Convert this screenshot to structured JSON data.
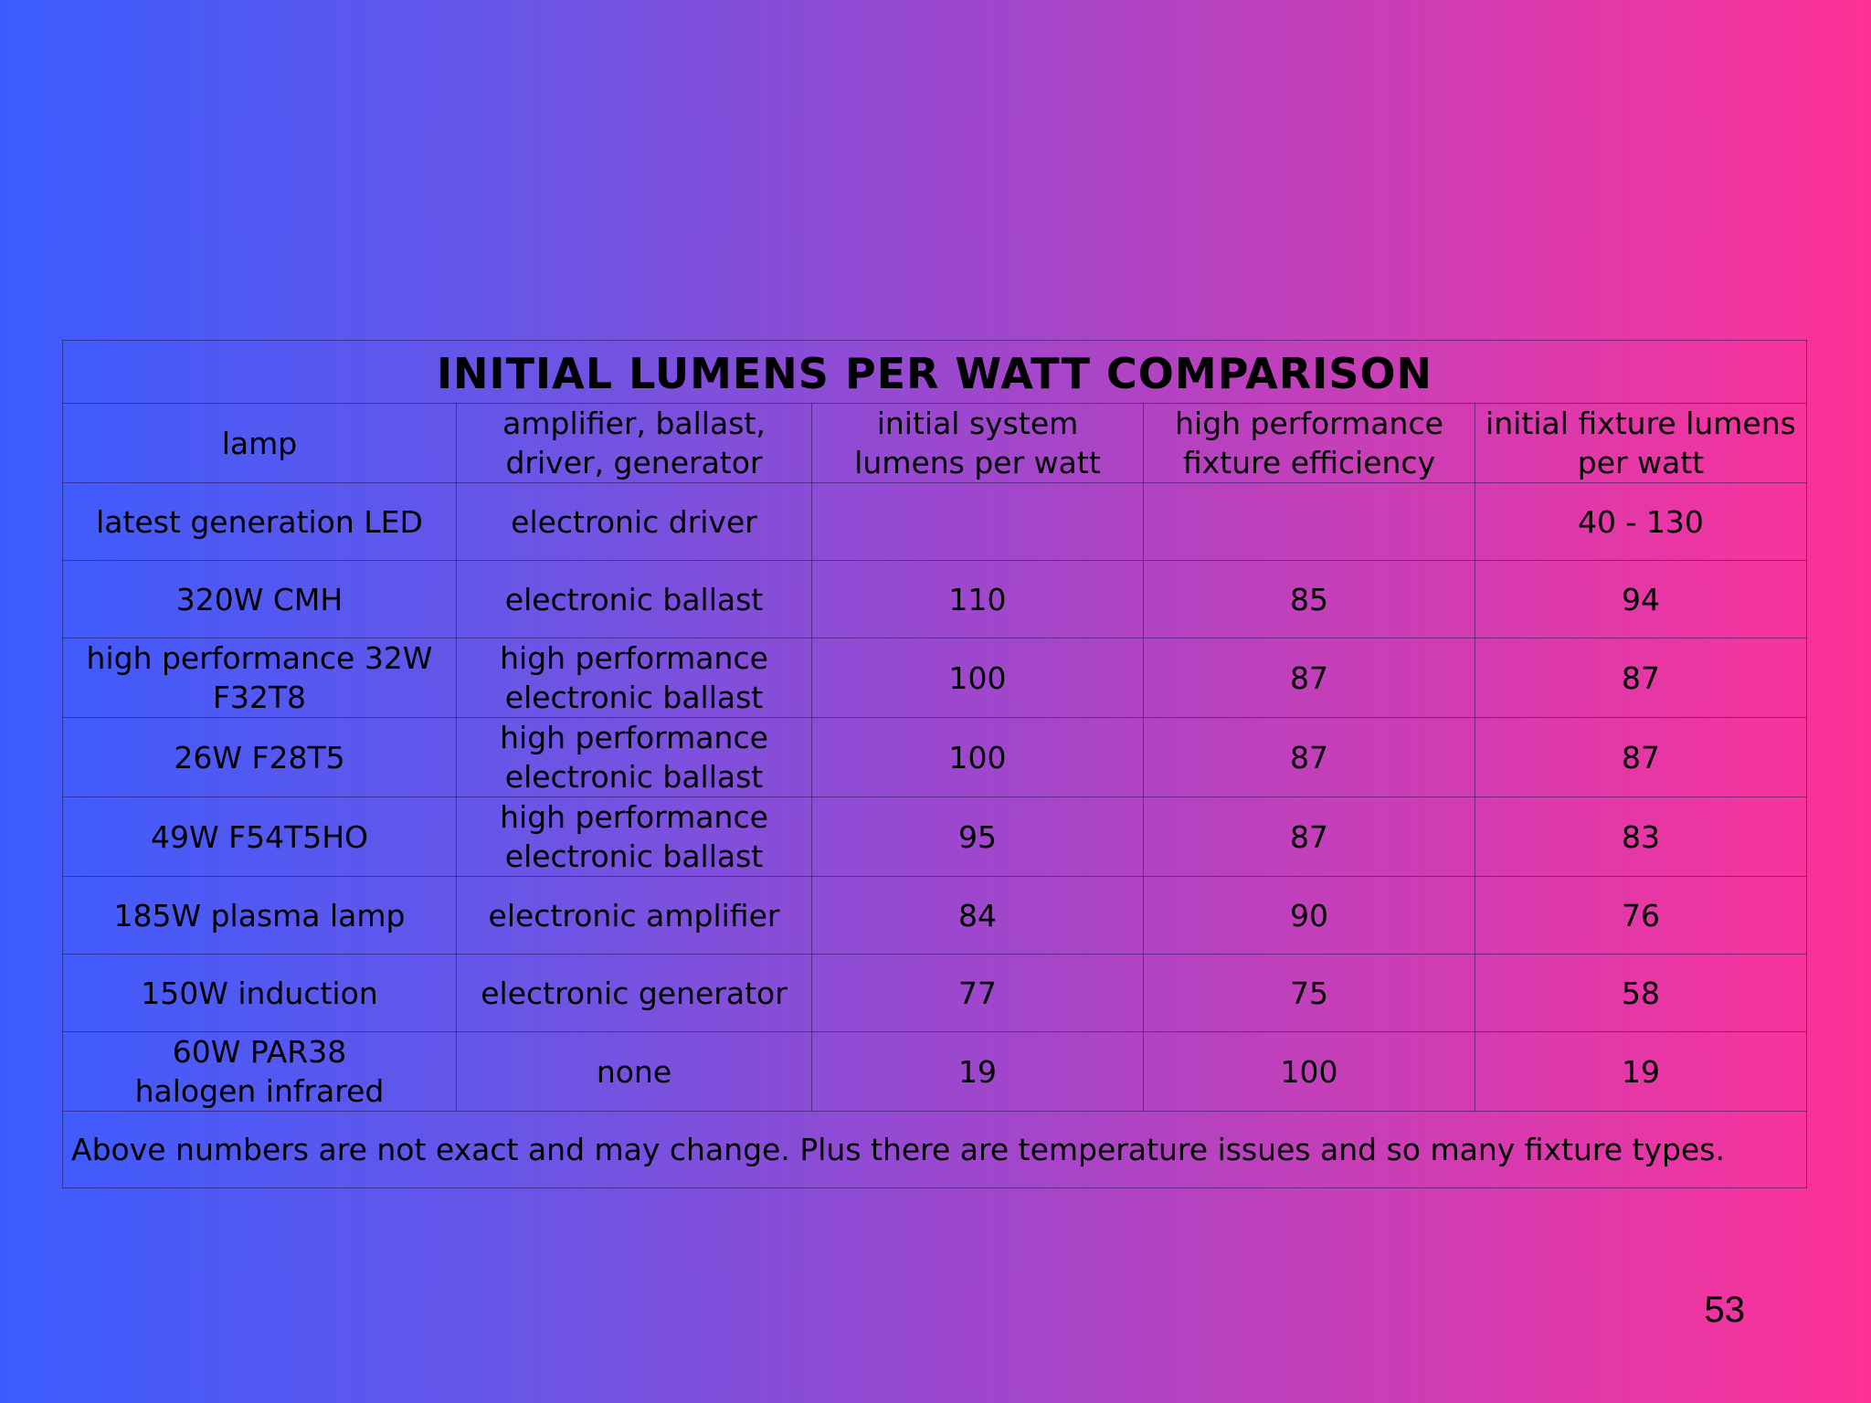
{
  "table": {
    "title": "INITIAL LUMENS PER WATT COMPARISON",
    "headers": [
      "lamp",
      "amplifier, ballast,\ndriver, generator",
      "initial system\nlumens per watt",
      "high performance\nfixture efficiency",
      "initial fixture lumens\nper watt"
    ],
    "rows": [
      [
        "latest generation LED",
        "electronic driver",
        "",
        "",
        "40 - 130"
      ],
      [
        "320W CMH",
        "electronic ballast",
        "110",
        "85",
        "94"
      ],
      [
        "high performance 32W\nF32T8",
        "high performance\nelectronic ballast",
        "100",
        "87",
        "87"
      ],
      [
        "26W F28T5",
        "high performance\nelectronic ballast",
        "100",
        "87",
        "87"
      ],
      [
        "49W F54T5HO",
        "high performance\nelectronic ballast",
        "95",
        "87",
        "83"
      ],
      [
        "185W plasma lamp",
        "electronic amplifier",
        "84",
        "90",
        "76"
      ],
      [
        "150W induction",
        "electronic generator",
        "77",
        "75",
        "58"
      ],
      [
        "60W PAR38\nhalogen infrared",
        "none",
        "19",
        "100",
        "19"
      ]
    ],
    "footnote": "Above numbers are not exact and may change. Plus there are temperature issues and so many fixture types."
  },
  "page_number": "53",
  "colors": {
    "gradient_left": "#3a5cff",
    "gradient_right": "#ff3197",
    "text": "#000000"
  }
}
